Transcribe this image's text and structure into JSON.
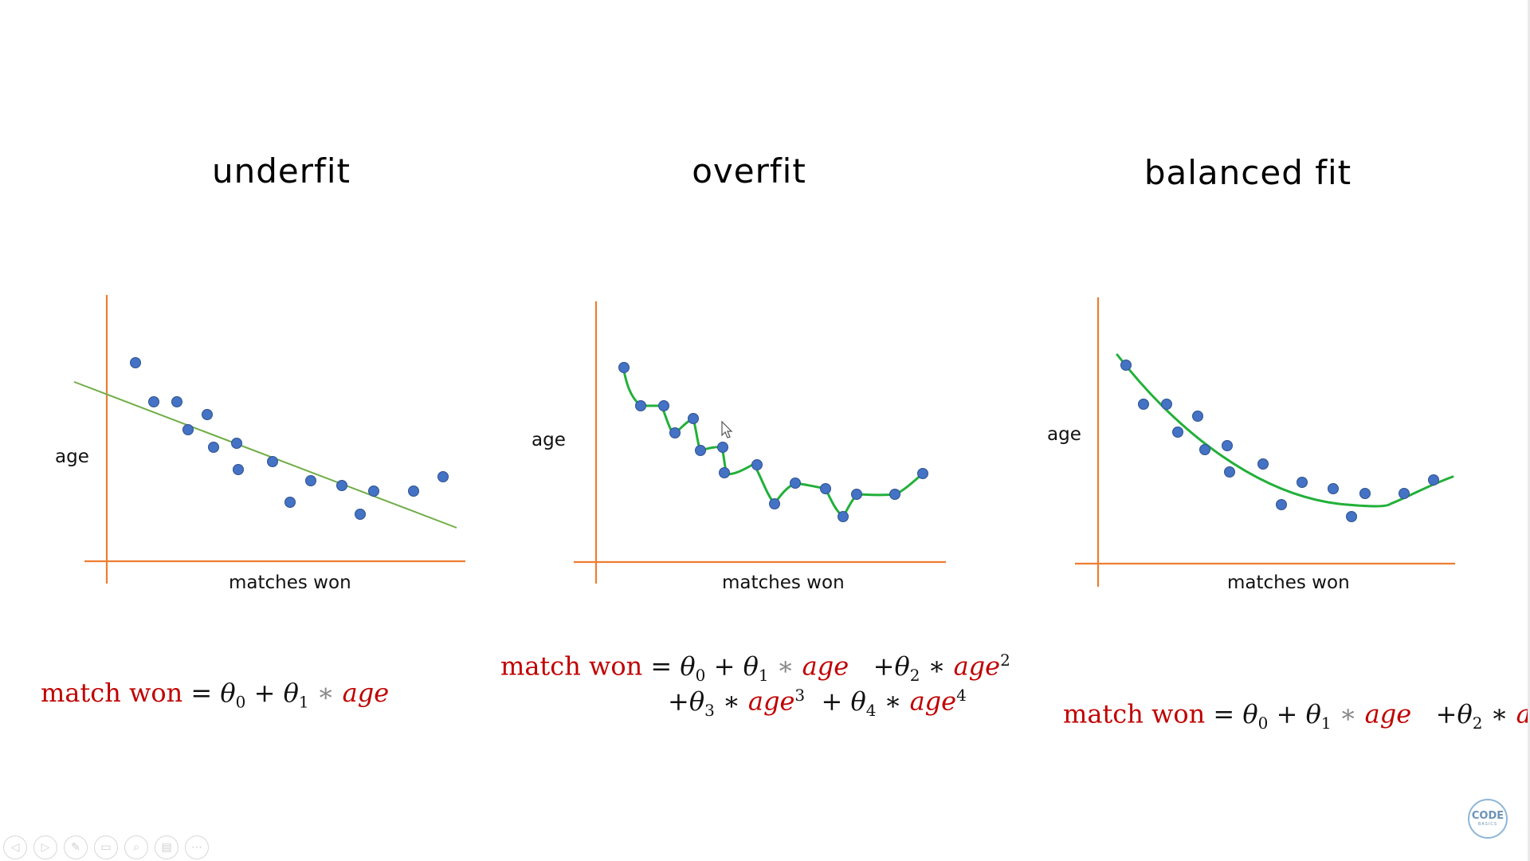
{
  "colors": {
    "axis": "#ed7d31",
    "point": "#4472c4",
    "point_edge": "#2f528f",
    "underfit_line": "#70ad47",
    "fit_curve": "#22b03a",
    "formula_red": "#c00000"
  },
  "panels": [
    {
      "title": "underfit",
      "xlabel": "matches won",
      "ylabel": "age"
    },
    {
      "title": "overfit",
      "xlabel": "matches won",
      "ylabel": "age"
    },
    {
      "title": "balanced fit",
      "xlabel": "matches won",
      "ylabel": "age"
    }
  ],
  "formulas": {
    "lhs": "match won",
    "eq": "=",
    "theta": "θ",
    "plus": "+",
    "star": "∗",
    "var": "age",
    "sub0": "0",
    "sub1": "1",
    "sub2": "2",
    "sub3": "3",
    "sub4": "4",
    "pow2": "2",
    "pow3": "3",
    "pow4": "4"
  },
  "toolbar": {
    "buttons": [
      "◁",
      "▷",
      "✎",
      "▭",
      "⌕",
      "▤",
      "⋯"
    ]
  },
  "logo": {
    "line1": "CODE",
    "line2": "BASICS"
  }
}
